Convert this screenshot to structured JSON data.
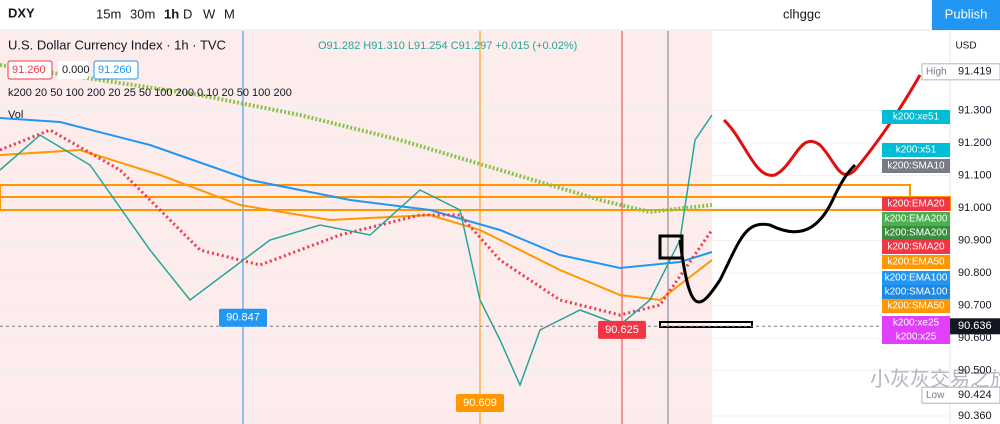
{
  "toolbar": {
    "symbol": "DXY",
    "intervals": [
      "15m",
      "30m",
      "1h",
      "D",
      "W",
      "M"
    ],
    "user": "clhggc",
    "publish": "Publish"
  },
  "header": {
    "title": "U.S. Dollar Currency Index · 1h · TVC",
    "ohlc": "O91.282 H91.310 L91.254 C91.297 +0.015 (+0.02%)",
    "inputs": [
      "91.260",
      "0.000",
      "91.260"
    ],
    "indicators": "k200 20 50 100 200 20 25 50 100 200 0.10 20 50 100 200",
    "volume": "Vol"
  },
  "price_axis": {
    "currency": "USD",
    "ticks": [
      {
        "value": 91.3,
        "label": "91.300"
      },
      {
        "value": 91.2,
        "label": "91.200"
      },
      {
        "value": 91.1,
        "label": "91.100"
      },
      {
        "value": 91.0,
        "label": "91.000"
      },
      {
        "value": 90.9,
        "label": "90.900"
      },
      {
        "value": 90.8,
        "label": "90.800"
      },
      {
        "value": 90.7,
        "label": "90.700"
      },
      {
        "value": 90.6,
        "label": "90.600"
      },
      {
        "value": 90.5,
        "label": "90.500"
      },
      {
        "value": 90.36,
        "label": "90.360"
      }
    ],
    "high": {
      "name": "High",
      "value": 91.419
    },
    "low": {
      "name": "Low",
      "value": 90.424
    },
    "last": 90.636
  },
  "markers": [
    {
      "value": 90.847,
      "color": "#2196f3"
    },
    {
      "value": 90.625,
      "color": "#f23645"
    },
    {
      "value": 90.609,
      "color": "#ff9800"
    }
  ],
  "indicator_labels": [
    {
      "text": "k200:xe51",
      "color": "#00bcd4"
    },
    {
      "text": "k200:x51",
      "color": "#00bcd4"
    },
    {
      "text": "k200:SMA10",
      "color": "#787b86"
    },
    {
      "text": "k200:EMA20",
      "color": "#f23645"
    },
    {
      "text": "k200:EMA200",
      "color": "#4caf50"
    },
    {
      "text": "k200:SMA200",
      "color": "#388e3c"
    },
    {
      "text": "k200:SMA20",
      "color": "#f23645"
    },
    {
      "text": "k200:EMA50",
      "color": "#ff9800"
    },
    {
      "text": "k200:EMA100",
      "color": "#2196f3"
    },
    {
      "text": "k200:SMA100",
      "color": "#1e88e5"
    },
    {
      "text": "k200:SMA50",
      "color": "#ff9800"
    },
    {
      "text": "k200:xe25",
      "color": "#e040fb"
    },
    {
      "text": "k200:x25",
      "color": "#e040fb"
    }
  ],
  "watermark": "小灰灰交易之旅"
}
